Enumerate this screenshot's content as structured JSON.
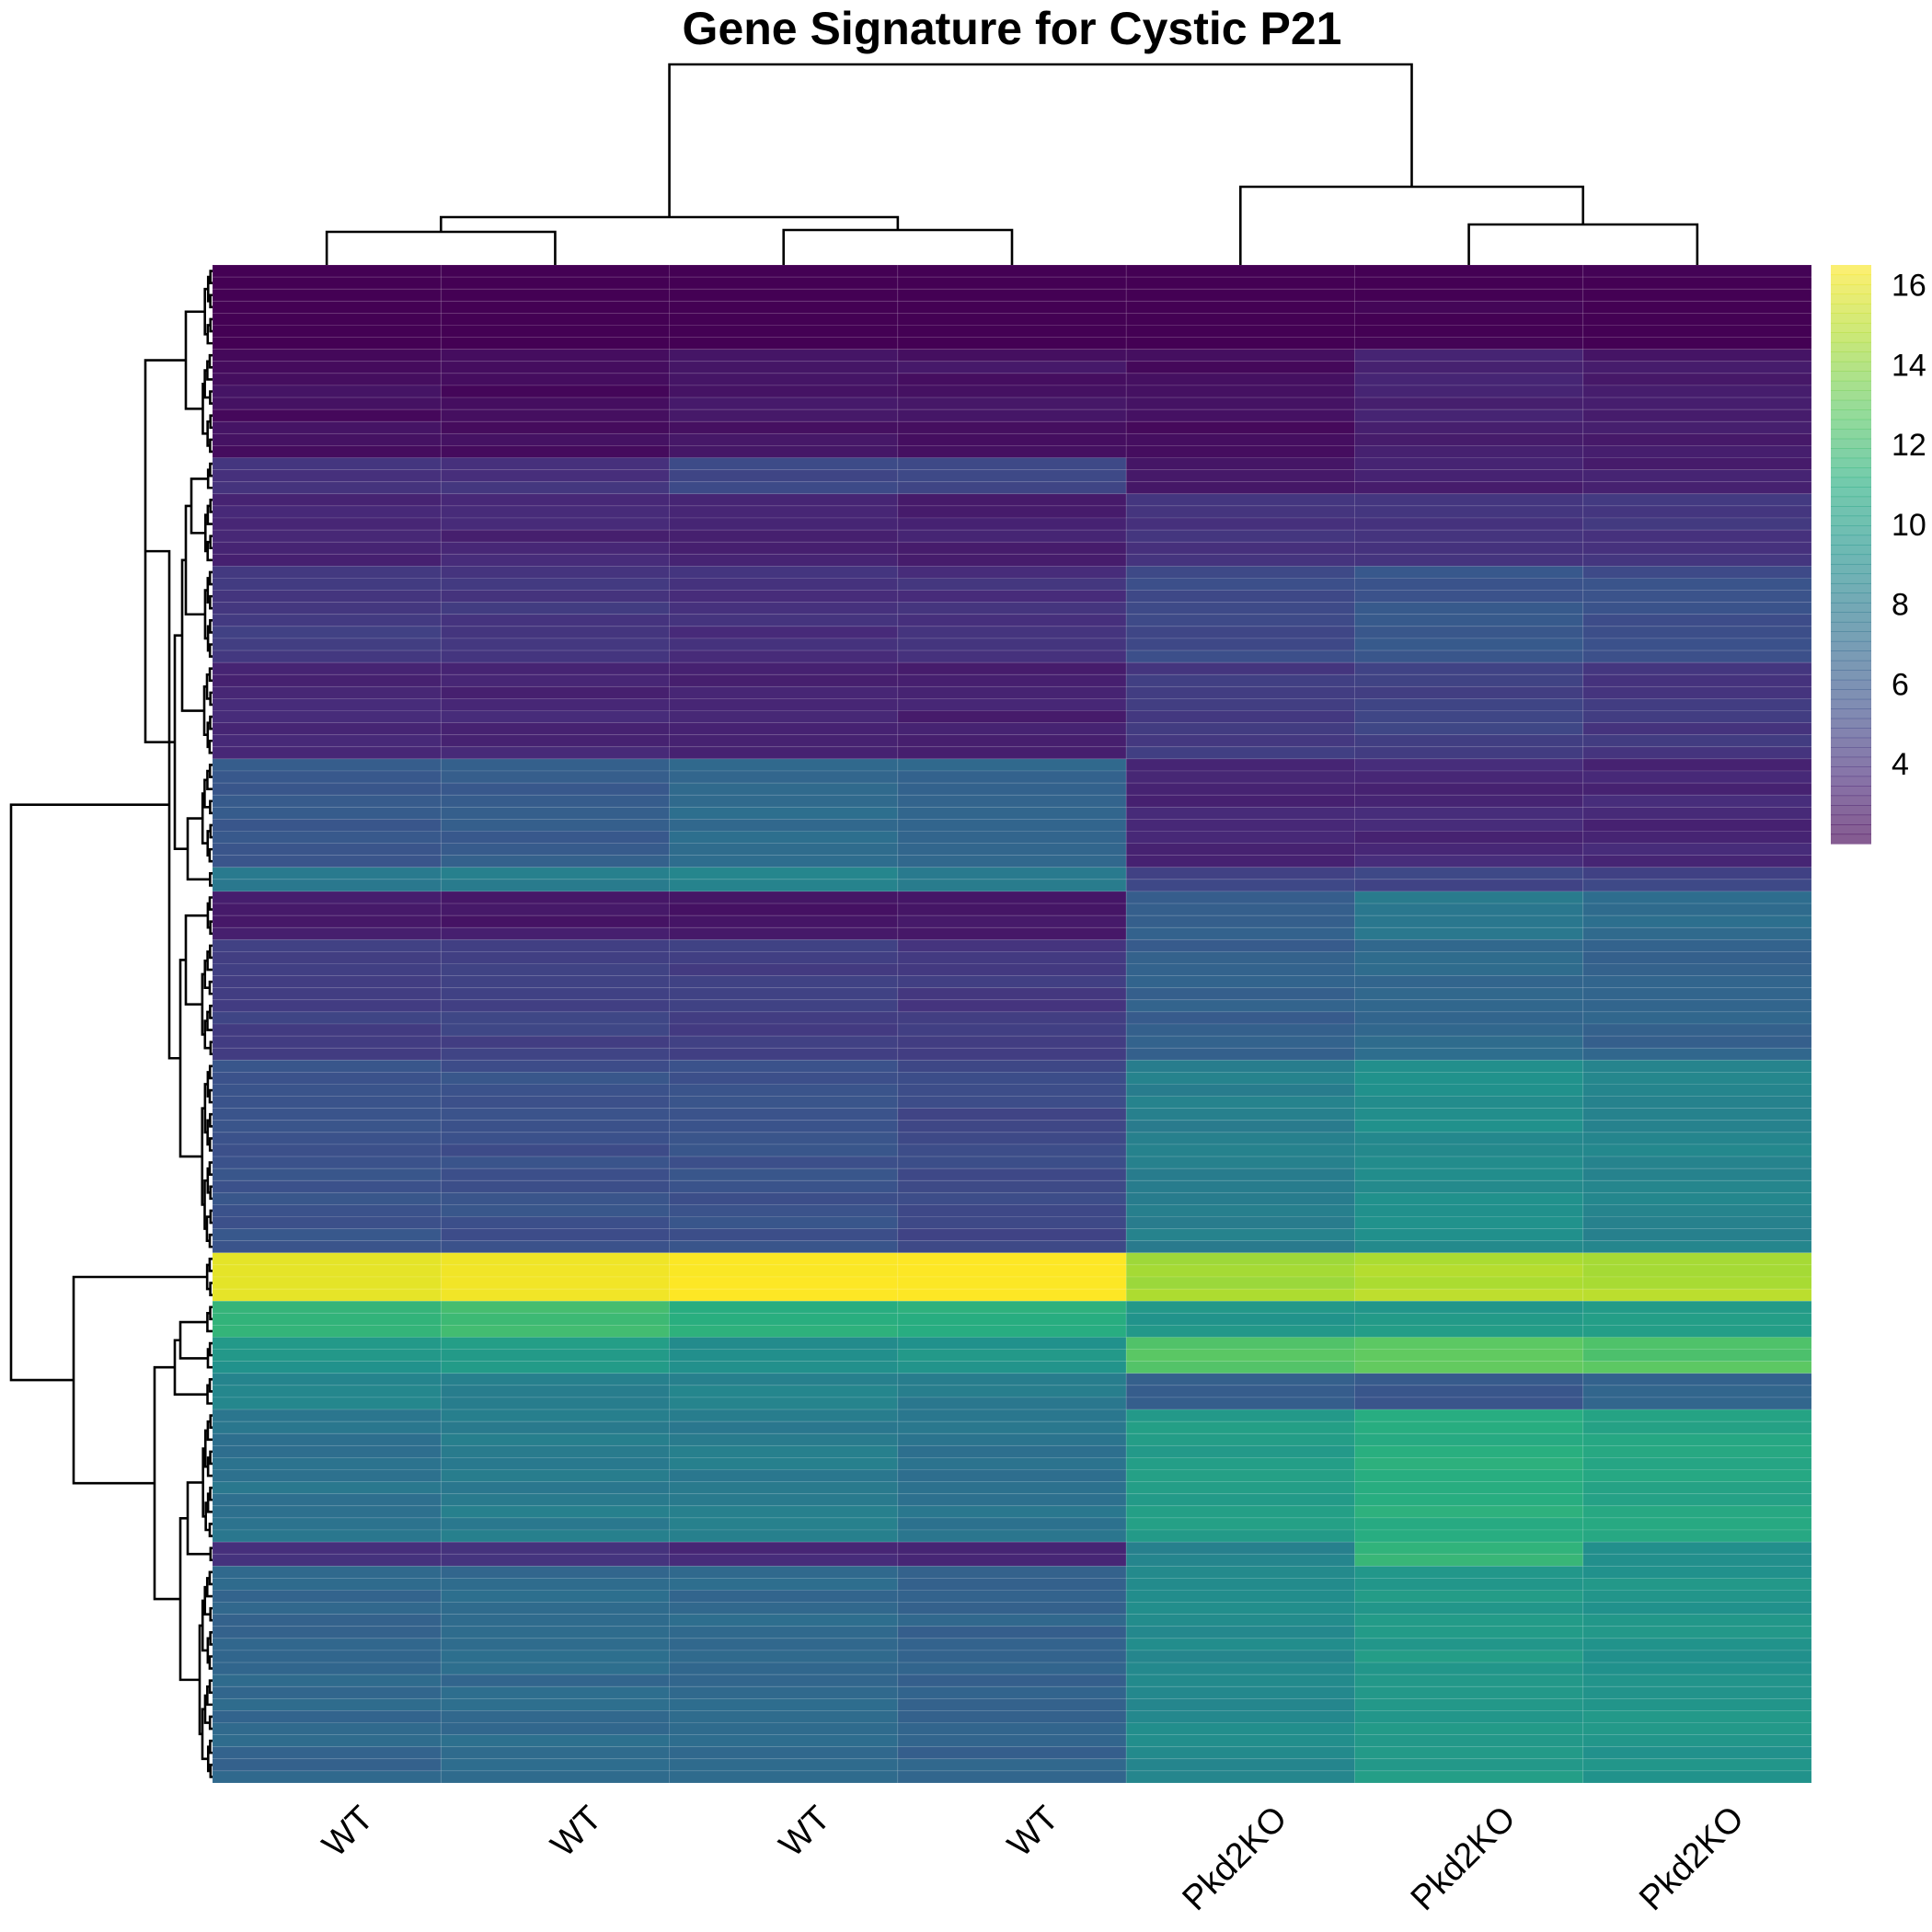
{
  "chart_data": {
    "type": "heatmap",
    "title": "Gene Signature for Cystic P21",
    "columns": [
      "WT",
      "WT",
      "WT",
      "WT",
      "Pkd2KO",
      "Pkd2KO",
      "Pkd2KO"
    ],
    "value_range": [
      2,
      16.5
    ],
    "legend": {
      "position": "right",
      "ticks": [
        4,
        6,
        8,
        10,
        12,
        14,
        16
      ]
    },
    "colormap": [
      "#440154",
      "#472d7b",
      "#3b528b",
      "#2c728e",
      "#21918c",
      "#28ae80",
      "#5ec962",
      "#addc30",
      "#fde725"
    ],
    "row_blocks": [
      {
        "rows": 7,
        "values": [
          1.0,
          1.0,
          1.0,
          1.0,
          1.5,
          2.0,
          1.8
        ]
      },
      {
        "rows": 9,
        "values": [
          2.5,
          2.5,
          2.8,
          2.8,
          2.6,
          3.2,
          3.0
        ]
      },
      {
        "rows": 3,
        "values": [
          4.0,
          4.0,
          5.0,
          5.2,
          3.0,
          3.4,
          3.2
        ]
      },
      {
        "rows": 6,
        "values": [
          3.5,
          3.5,
          3.5,
          3.3,
          4.0,
          4.0,
          4.2
        ]
      },
      {
        "rows": 8,
        "values": [
          4.5,
          4.3,
          4.0,
          4.0,
          5.2,
          5.8,
          5.5
        ]
      },
      {
        "rows": 8,
        "values": [
          3.5,
          3.5,
          3.4,
          3.3,
          4.5,
          4.8,
          4.3
        ]
      },
      {
        "rows": 9,
        "values": [
          6.0,
          6.2,
          7.0,
          6.8,
          3.5,
          3.6,
          3.5
        ]
      },
      {
        "rows": 2,
        "values": [
          8.0,
          8.0,
          8.5,
          8.0,
          5.0,
          5.0,
          5.0
        ]
      },
      {
        "rows": 4,
        "values": [
          3.0,
          3.0,
          2.9,
          2.8,
          6.5,
          7.8,
          7.0
        ]
      },
      {
        "rows": 10,
        "values": [
          4.8,
          4.8,
          4.6,
          4.4,
          6.4,
          7.0,
          6.6
        ]
      },
      {
        "rows": 16,
        "values": [
          5.8,
          5.6,
          5.6,
          5.2,
          8.2,
          9.0,
          8.5
        ]
      },
      {
        "rows": 4,
        "values": [
          16.0,
          16.2,
          16.5,
          16.5,
          14.5,
          14.8,
          14.8
        ]
      },
      {
        "rows": 3,
        "values": [
          11.5,
          12.0,
          11.0,
          11.0,
          9.5,
          9.8,
          9.8
        ]
      },
      {
        "rows": 3,
        "values": [
          9.5,
          10.0,
          9.0,
          9.5,
          12.5,
          13.0,
          12.5
        ]
      },
      {
        "rows": 3,
        "values": [
          8.5,
          8.0,
          8.5,
          8.0,
          6.5,
          6.0,
          6.5
        ]
      },
      {
        "rows": 11,
        "values": [
          7.5,
          8.0,
          8.0,
          7.5,
          10.0,
          11.0,
          10.5
        ]
      },
      {
        "rows": 2,
        "values": [
          4.0,
          4.0,
          3.5,
          3.5,
          8.5,
          11.5,
          9.0
        ]
      },
      {
        "rows": 18,
        "values": [
          6.8,
          7.0,
          7.0,
          6.6,
          8.8,
          9.8,
          9.5
        ]
      }
    ]
  }
}
